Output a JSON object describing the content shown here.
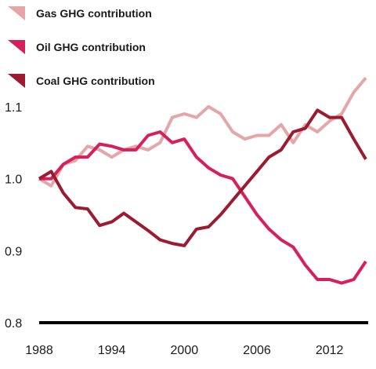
{
  "chart_data": {
    "type": "line",
    "title": "",
    "xlabel": "",
    "ylabel": "",
    "x": [
      1988,
      1989,
      1990,
      1991,
      1992,
      1993,
      1994,
      1995,
      1996,
      1997,
      1998,
      1999,
      2000,
      2001,
      2002,
      2003,
      2004,
      2005,
      2006,
      2007,
      2008,
      2009,
      2010,
      2011,
      2012,
      2013,
      2014,
      2015
    ],
    "x_ticks": [
      "1988",
      "1994",
      "2000",
      "2006",
      "2012"
    ],
    "x_tick_values": [
      1988,
      1994,
      2000,
      2006,
      2012
    ],
    "y_ticks": [
      "1.1",
      "1.0",
      "0.9",
      "0.8"
    ],
    "y_tick_values": [
      1.1,
      1.0,
      0.9,
      0.8
    ],
    "xlim": [
      1988,
      2015
    ],
    "ylim": [
      0.8,
      1.15
    ],
    "grid": false,
    "legend_position": "top-left",
    "series": [
      {
        "name": "Gas GHG contribution",
        "color": "#e4a6a6",
        "values": [
          1.0,
          0.99,
          1.02,
          1.025,
          1.045,
          1.04,
          1.03,
          1.04,
          1.045,
          1.04,
          1.05,
          1.085,
          1.09,
          1.085,
          1.1,
          1.09,
          1.065,
          1.055,
          1.06,
          1.06,
          1.075,
          1.05,
          1.075,
          1.065,
          1.08,
          1.09,
          1.12,
          1.14
        ]
      },
      {
        "name": "Oil GHG contribution",
        "color": "#d81e5b",
        "values": [
          1.0,
          1.0,
          1.02,
          1.03,
          1.03,
          1.048,
          1.045,
          1.04,
          1.04,
          1.06,
          1.065,
          1.05,
          1.055,
          1.03,
          1.015,
          1.005,
          1.0,
          0.975,
          0.95,
          0.93,
          0.915,
          0.905,
          0.88,
          0.86,
          0.86,
          0.855,
          0.86,
          0.885
        ]
      },
      {
        "name": "Coal GHG contribution",
        "color": "#9b1b30",
        "values": [
          1.0,
          1.01,
          0.98,
          0.96,
          0.958,
          0.935,
          0.94,
          0.952,
          0.94,
          0.928,
          0.915,
          0.91,
          0.907,
          0.93,
          0.933,
          0.95,
          0.97,
          0.99,
          1.01,
          1.03,
          1.04,
          1.065,
          1.07,
          1.095,
          1.085,
          1.085,
          1.055,
          1.027
        ]
      }
    ]
  }
}
